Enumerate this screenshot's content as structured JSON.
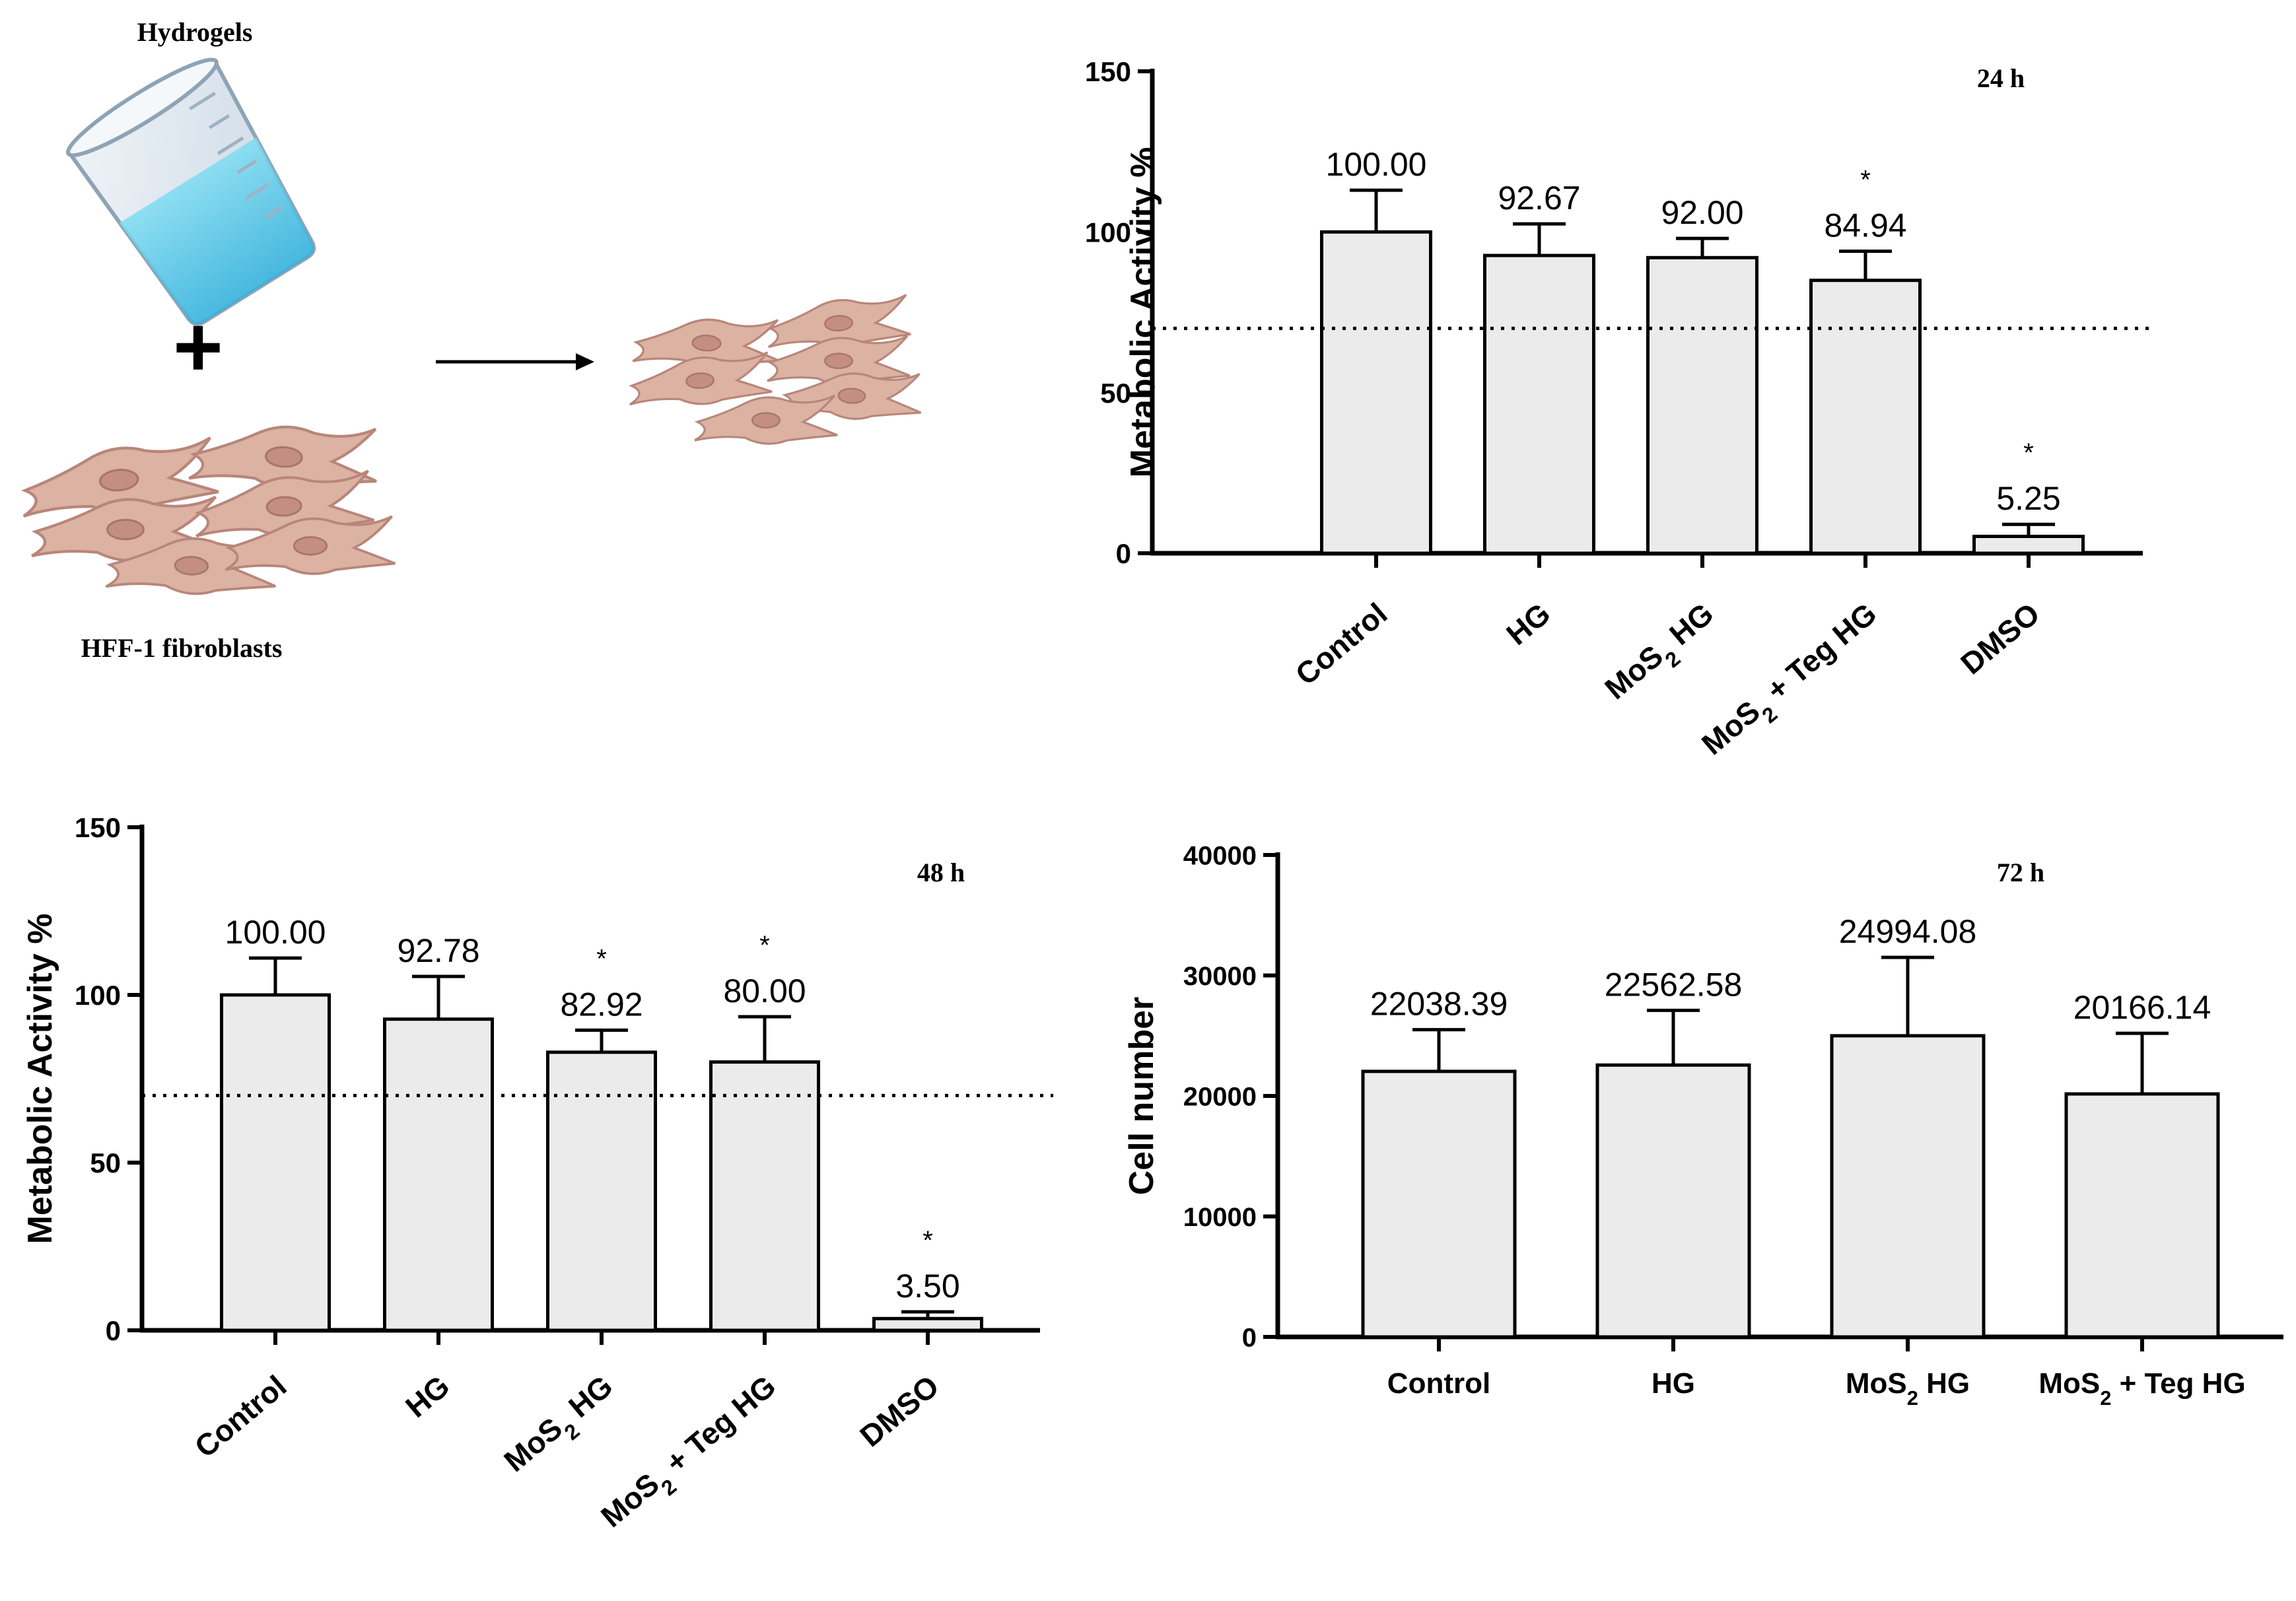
{
  "schematic": {
    "hydrogels_label": "Hydrogels",
    "plus_sign": "+",
    "fibroblasts_label": "HFF-1 fibroblasts"
  },
  "chart_data": [
    {
      "type": "bar",
      "title": "24 h",
      "ylabel": "Metabolic Activity %",
      "xlabel": "",
      "ylim": [
        0,
        150
      ],
      "yticks": [
        "0",
        "50",
        "100",
        "150"
      ],
      "categories": [
        "Control",
        "HG",
        "MoS2 HG",
        "MoS2 + Teg HG",
        "DMSO"
      ],
      "values": [
        100.0,
        92.67,
        92.0,
        84.94,
        5.25
      ],
      "value_labels": [
        "100.00",
        "92.67",
        "92.00",
        "84.94",
        "5.25"
      ],
      "error_upper": [
        113,
        102.5,
        98,
        94,
        9
      ],
      "significance": [
        "",
        "",
        "",
        "*",
        "*"
      ],
      "threshold": 70
    },
    {
      "type": "bar",
      "title": "48 h",
      "ylabel": "Metabolic Activity %",
      "xlabel": "",
      "ylim": [
        0,
        150
      ],
      "yticks": [
        "0",
        "50",
        "100",
        "150"
      ],
      "categories": [
        "Control",
        "HG",
        "MoS2 HG",
        "MoS2 + Teg HG",
        "DMSO"
      ],
      "values": [
        100.0,
        92.78,
        82.92,
        80.0,
        3.5
      ],
      "value_labels": [
        "100.00",
        "92.78",
        "82.92",
        "80.00",
        "3.50"
      ],
      "error_upper": [
        111,
        105.5,
        89.5,
        93.5,
        5.5
      ],
      "significance": [
        "",
        "",
        "*",
        "*",
        "*"
      ],
      "threshold": 70
    },
    {
      "type": "bar",
      "title": "72 h",
      "ylabel": "Cell number",
      "xlabel": "",
      "ylim": [
        0,
        40000
      ],
      "yticks": [
        "0",
        "10000",
        "20000",
        "30000",
        "40000"
      ],
      "categories": [
        "Control",
        "HG",
        "MoS2 HG",
        "MoS2 + Teg HG"
      ],
      "values": [
        22038.39,
        22562.58,
        24994.08,
        20166.14
      ],
      "value_labels": [
        "22038.39",
        "22562.58",
        "24994.08",
        "20166.14"
      ],
      "error_upper": [
        25500,
        27100,
        31500,
        25200
      ],
      "significance": [
        "",
        "",
        "",
        ""
      ],
      "threshold": null
    }
  ]
}
